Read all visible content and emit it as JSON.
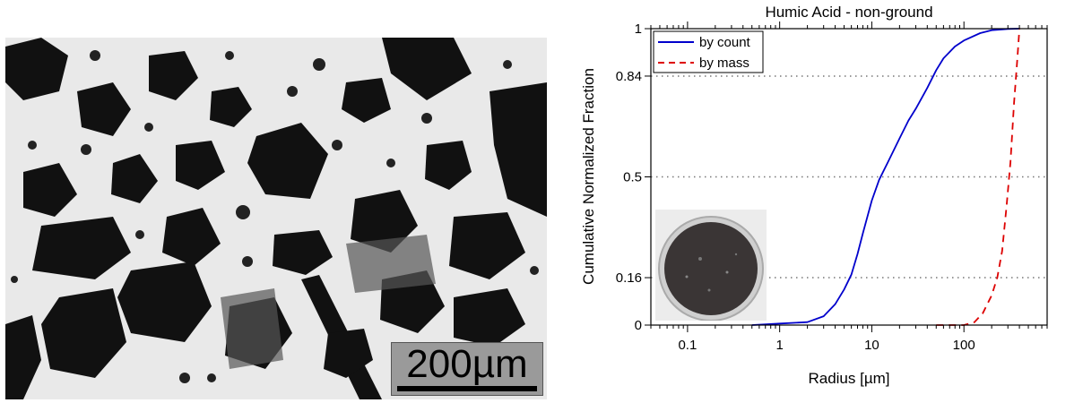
{
  "micrograph": {
    "scale_label": "200µm"
  },
  "chart_data": {
    "type": "line",
    "title": "Humic Acid - non-ground",
    "xlabel": "Radius [µm]",
    "ylabel": "Cumulative Normalized Fraction",
    "xscale": "log",
    "xlim": [
      0.04,
      800
    ],
    "ylim": [
      0,
      1
    ],
    "xticks": [
      0.1,
      1,
      10,
      100
    ],
    "xtick_labels": [
      "0.1",
      "1",
      "10",
      "100"
    ],
    "yticks": [
      0,
      0.16,
      0.5,
      0.84,
      1
    ],
    "ytick_labels": [
      "0",
      "0.16",
      "0.5",
      "0.84",
      "1"
    ],
    "grid": "horizontal dotted at y ticks",
    "legend": "top-left",
    "series": [
      {
        "name": "by count",
        "color": "#0000cc",
        "dash": "solid",
        "x": [
          0.5,
          1,
          2,
          3,
          4,
          5,
          6,
          7,
          8,
          10,
          12,
          15,
          20,
          25,
          30,
          40,
          50,
          60,
          80,
          100,
          150,
          200,
          300,
          400
        ],
        "y": [
          0.0,
          0.005,
          0.01,
          0.03,
          0.07,
          0.12,
          0.17,
          0.24,
          0.31,
          0.42,
          0.49,
          0.55,
          0.63,
          0.69,
          0.73,
          0.8,
          0.86,
          0.9,
          0.94,
          0.96,
          0.985,
          0.995,
          0.999,
          1.0
        ]
      },
      {
        "name": "by mass",
        "color": "#dd0000",
        "dash": "dashed",
        "x": [
          50,
          100,
          130,
          160,
          200,
          230,
          260,
          290,
          320,
          350,
          380,
          400
        ],
        "y": [
          0.0,
          0.0,
          0.01,
          0.04,
          0.1,
          0.16,
          0.25,
          0.4,
          0.55,
          0.75,
          0.9,
          1.0
        ]
      }
    ]
  }
}
